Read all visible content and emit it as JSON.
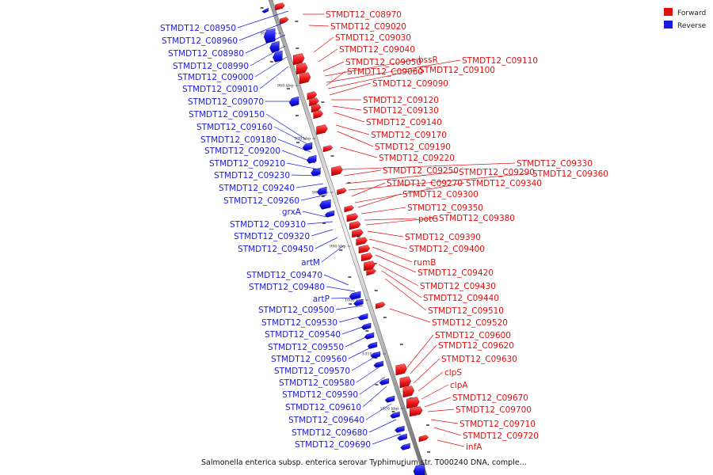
{
  "legend": {
    "forward": {
      "label": "Forward",
      "color": "#e01010"
    },
    "reverse": {
      "label": "Reverse",
      "color": "#1a1ae0"
    }
  },
  "caption": "Salmonella enterica subsp. enterica serovar Typhimurium str. T000240 DNA, comple...",
  "ticks": [
    "950 kbp",
    "960 kbp",
    "970 kbp",
    "980 kbp",
    "990 kbp",
    "1000 kbp",
    "1010 kbp",
    "1020 kbp"
  ],
  "reverse_labels": [
    "STMDT12_C08950",
    "STMDT12_C08960",
    "STMDT12_C08980",
    "STMDT12_C08990",
    "STMDT12_C09000",
    "STMDT12_C09010",
    "STMDT12_C09070",
    "STMDT12_C09150",
    "STMDT12_C09160",
    "STMDT12_C09180",
    "STMDT12_C09200",
    "STMDT12_C09210",
    "STMDT12_C09230",
    "STMDT12_C09240",
    "STMDT12_C09260",
    "grxA",
    "STMDT12_C09310",
    "STMDT12_C09320",
    "STMDT12_C09450",
    "artM",
    "STMDT12_C09470",
    "STMDT12_C09480",
    "artP",
    "STMDT12_C09500",
    "STMDT12_C09530",
    "STMDT12_C09540",
    "STMDT12_C09550",
    "STMDT12_C09560",
    "STMDT12_C09570",
    "STMDT12_C09580",
    "STMDT12_C09590",
    "STMDT12_C09610",
    "STMDT12_C09640",
    "STMDT12_C09680",
    "STMDT12_C09690"
  ],
  "forward_labels": [
    "STMDT12_C08970",
    "STMDT12_C09020",
    "STMDT12_C09030",
    "STMDT12_C09040",
    "STMDT12_C09050",
    "bssR",
    "STMDT12_C09110",
    "STMDT12_C09060",
    "STMDT12_C09100",
    "STMDT12_C09090",
    "STMDT12_C09120",
    "STMDT12_C09130",
    "STMDT12_C09140",
    "STMDT12_C09170",
    "STMDT12_C09190",
    "STMDT12_C09220",
    "STMDT12_C09330",
    "STMDT12_C09250",
    "STMDT12_C09290",
    "STMDT12_C09360",
    "STMDT12_C09270",
    "STMDT12_C09340",
    "STMDT12_C09300",
    "STMDT12_C09350",
    "potG",
    "STMDT12_C09380",
    "STMDT12_C09390",
    "STMDT12_C09400",
    "rumB",
    "STMDT12_C09420",
    "STMDT12_C09430",
    "STMDT12_C09440",
    "STMDT12_C09510",
    "STMDT12_C09520",
    "STMDT12_C09600",
    "STMDT12_C09620",
    "STMDT12_C09630",
    "clpS",
    "clpA",
    "STMDT12_C09670",
    "STMDT12_C09700",
    "STMDT12_C09710",
    "STMDT12_C09720",
    "infA"
  ]
}
